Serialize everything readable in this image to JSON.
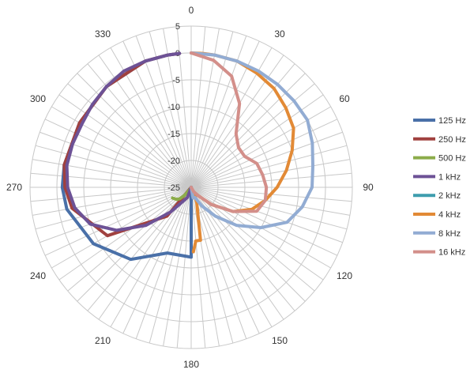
{
  "chart_data": {
    "type": "radar",
    "angle_ticks": [
      "0",
      "30",
      "60",
      "90",
      "120",
      "150",
      "180",
      "210",
      "240",
      "270",
      "300",
      "330"
    ],
    "r_ticks": [
      "5",
      "0",
      "-5",
      "-10",
      "-15",
      "-20",
      "-25"
    ],
    "rlim": [
      -25,
      5
    ],
    "grid": true,
    "spoke_step_deg": 5,
    "legend_position": "right",
    "series": [
      {
        "name": "125 Hz",
        "color": "#4a70a8",
        "angles": [
          0,
          20,
          40,
          60,
          80,
          90,
          100,
          120,
          140,
          160,
          180,
          200,
          220,
          240,
          260,
          270,
          280,
          300,
          320,
          340,
          350,
          355
        ],
        "values": [
          -25,
          -25,
          -25,
          -25,
          -25,
          -25,
          -25,
          -25,
          -25,
          -25,
          -12,
          -12,
          -7.5,
          -4,
          -1.5,
          -1,
          -1,
          -1,
          -0.5,
          0,
          0,
          0
        ]
      },
      {
        "name": "250 Hz",
        "color": "#a0413f",
        "angles": [
          0,
          20,
          40,
          60,
          80,
          90,
          100,
          120,
          140,
          160,
          180,
          200,
          210,
          220,
          240,
          260,
          270,
          280,
          300,
          320,
          340,
          350,
          355
        ],
        "values": [
          -25,
          -25,
          -25,
          -25,
          -25,
          -25,
          -25,
          -25,
          -25,
          -25,
          -25,
          -25,
          -25,
          -18,
          -7,
          -2.5,
          -1.5,
          -1,
          -1,
          -0.5,
          0,
          0,
          0
        ]
      },
      {
        "name": "500 Hz",
        "color": "#8cac4a",
        "angles": [
          0,
          30,
          60,
          90,
          120,
          150,
          180,
          200,
          210,
          220,
          225,
          230,
          240
        ],
        "values": [
          -25,
          -25,
          -25,
          -25,
          -25,
          -25,
          -25,
          -25,
          -24.5,
          -23,
          -22,
          -21.5,
          -21
        ]
      },
      {
        "name": "1 kHz",
        "color": "#6d5296",
        "angles": [
          0,
          20,
          40,
          60,
          80,
          100,
          120,
          140,
          160,
          180,
          200,
          215,
          220,
          230,
          240,
          250,
          260,
          270,
          280,
          290,
          300,
          310,
          320,
          330,
          340,
          350,
          355
        ],
        "values": [
          -25,
          -25,
          -25,
          -25,
          -25,
          -25,
          -25,
          -25,
          -25,
          -25,
          -23,
          -21,
          -19,
          -14,
          -9,
          -5,
          -3,
          -2,
          -1.5,
          -1.5,
          -1.5,
          -1,
          -0.5,
          0,
          0,
          0,
          0
        ]
      },
      {
        "name": "2 kHz",
        "color": "#3e9dae",
        "angles": [
          0,
          90,
          180,
          270,
          340
        ],
        "values": [
          -25,
          -25,
          -25,
          -25,
          -25
        ]
      },
      {
        "name": "4 kHz",
        "color": "#e28a36",
        "angles": [
          0,
          5,
          10,
          20,
          30,
          40,
          50,
          60,
          70,
          80,
          90,
          100,
          110,
          120,
          130,
          140,
          150,
          160,
          170,
          175,
          178
        ],
        "values": [
          0,
          0,
          0,
          0,
          -0.5,
          -1,
          -2,
          -3,
          -5,
          -7,
          -9,
          -11,
          -13,
          -16,
          -20,
          -23,
          -24,
          -22,
          -15,
          -15,
          -13
        ]
      },
      {
        "name": "8 kHz",
        "color": "#92acd3",
        "angles": [
          0,
          10,
          20,
          30,
          40,
          50,
          60,
          70,
          80,
          90,
          100,
          110,
          120,
          130,
          140,
          150,
          160,
          170,
          180
        ],
        "values": [
          0,
          0,
          0,
          0,
          0,
          0,
          0,
          -1,
          -2,
          -2.5,
          -4,
          -6,
          -10,
          -14,
          -18,
          -21,
          -23,
          -23,
          -25
        ]
      },
      {
        "name": "16 kHz",
        "color": "#d38f8a",
        "angles": [
          0,
          10,
          20,
          30,
          40,
          50,
          60,
          70,
          80,
          90,
          100,
          110,
          120,
          130,
          140,
          150,
          160,
          170,
          180
        ],
        "values": [
          0,
          -1,
          -3,
          -7,
          -12,
          -13.5,
          -13.5,
          -12,
          -11.5,
          -11,
          -11,
          -12,
          -16,
          -20,
          -23,
          -24,
          -25,
          -25,
          -25
        ]
      }
    ]
  }
}
